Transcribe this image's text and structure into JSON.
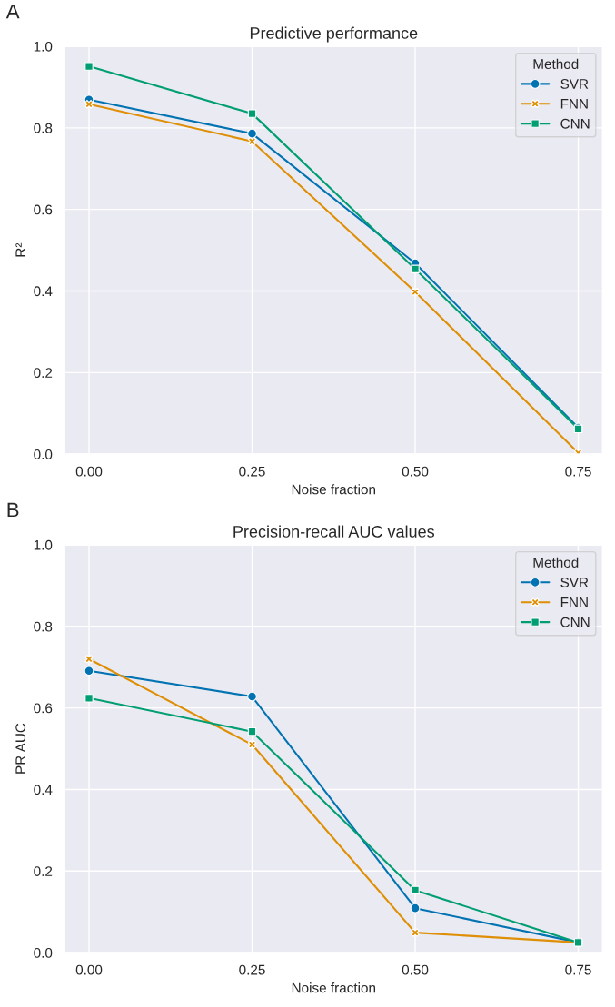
{
  "chart_data": [
    {
      "type": "line",
      "title": "Predictive performance",
      "xlabel": "Noise fraction",
      "ylabel": "R²",
      "legend_title": "Method",
      "annotations": [
        "A"
      ],
      "x": [
        0.0,
        0.25,
        0.5,
        0.75
      ],
      "xlim": [
        -0.0375,
        0.7875
      ],
      "xticks": [
        {
          "value": 0,
          "label": "0.00"
        },
        {
          "value": 0.25,
          "label": "0.25"
        },
        {
          "value": 0.5,
          "label": "0.50"
        },
        {
          "value": 0.75,
          "label": "0.75"
        }
      ],
      "ylim": [
        0,
        1
      ],
      "yticks": [
        {
          "value": 0,
          "label": "0.0"
        },
        {
          "value": 0.2,
          "label": "0.2"
        },
        {
          "value": 0.4,
          "label": "0.4"
        },
        {
          "value": 0.6,
          "label": "0.6"
        },
        {
          "value": 0.8,
          "label": "0.8"
        },
        {
          "value": 1,
          "label": "1.0"
        }
      ],
      "grid": true,
      "legend": "top right",
      "line_style": "solid",
      "series": [
        {
          "name": "SVR",
          "color": "#0173b2",
          "marker": "circle",
          "values": [
            0.869,
            0.786,
            0.468,
            0.065
          ]
        },
        {
          "name": "FNN",
          "color": "#de8f05",
          "marker": "cross",
          "values": [
            0.858,
            0.767,
            0.398,
            0.003
          ]
        },
        {
          "name": "CNN",
          "color": "#029e73",
          "marker": "square",
          "values": [
            0.951,
            0.835,
            0.454,
            0.062
          ]
        }
      ]
    },
    {
      "type": "line",
      "title": "Precision-recall AUC values",
      "xlabel": "Noise fraction",
      "ylabel": "PR AUC",
      "legend_title": "Method",
      "annotations": [
        "B"
      ],
      "x": [
        0.0,
        0.25,
        0.5,
        0.75
      ],
      "xlim": [
        -0.0375,
        0.7875
      ],
      "xticks": [
        {
          "value": 0,
          "label": "0.00"
        },
        {
          "value": 0.25,
          "label": "0.25"
        },
        {
          "value": 0.5,
          "label": "0.50"
        },
        {
          "value": 0.75,
          "label": "0.75"
        }
      ],
      "ylim": [
        0,
        1
      ],
      "yticks": [
        {
          "value": 0,
          "label": "0.0"
        },
        {
          "value": 0.2,
          "label": "0.2"
        },
        {
          "value": 0.4,
          "label": "0.4"
        },
        {
          "value": 0.6,
          "label": "0.6"
        },
        {
          "value": 0.8,
          "label": "0.8"
        },
        {
          "value": 1,
          "label": "1.0"
        }
      ],
      "grid": true,
      "legend": "top right",
      "line_style": "solid",
      "series": [
        {
          "name": "SVR",
          "color": "#0173b2",
          "marker": "circle",
          "values": [
            0.691,
            0.628,
            0.109,
            0.025
          ]
        },
        {
          "name": "FNN",
          "color": "#de8f05",
          "marker": "cross",
          "values": [
            0.72,
            0.51,
            0.049,
            0.025
          ]
        },
        {
          "name": "CNN",
          "color": "#029e73",
          "marker": "square",
          "values": [
            0.624,
            0.542,
            0.153,
            0.025
          ]
        }
      ]
    }
  ]
}
